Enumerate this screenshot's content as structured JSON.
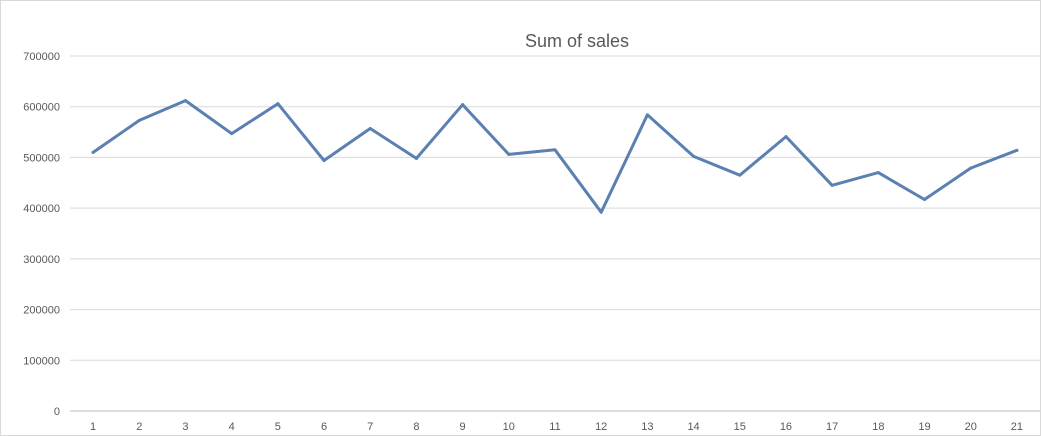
{
  "chart_data": {
    "type": "line",
    "title": "Sum of sales",
    "xlabel": "",
    "ylabel": "",
    "categories": [
      "1",
      "2",
      "3",
      "4",
      "5",
      "6",
      "7",
      "8",
      "9",
      "10",
      "11",
      "12",
      "13",
      "14",
      "15",
      "16",
      "17",
      "18",
      "19",
      "20",
      "21"
    ],
    "series": [
      {
        "values": [
          510000,
          573000,
          612000,
          547000,
          606000,
          494000,
          557000,
          498000,
          604000,
          506000,
          515000,
          392000,
          584000,
          502000,
          465000,
          541000,
          445000,
          470000,
          417000,
          479000,
          514000
        ]
      }
    ],
    "ylim": [
      0,
      700000
    ],
    "yticks": [
      "0",
      "100000",
      "200000",
      "300000",
      "400000",
      "500000",
      "600000",
      "700000"
    ],
    "grid": true,
    "legend": "none",
    "colors": {
      "line": "#5b80b2",
      "grid": "#d9d9d9",
      "text": "#595959"
    }
  }
}
